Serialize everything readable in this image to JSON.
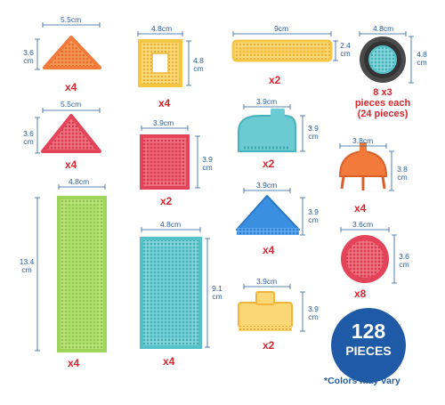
{
  "colors": {
    "dimension_line": "#2a5f9e",
    "quantity_text": "#d8262e",
    "badge": "#1f5aa6",
    "orange": "#f27a3a",
    "red": "#e4445a",
    "yellow": "#f7c544",
    "green": "#9fd45a",
    "teal": "#55c1c9",
    "blue": "#3a8fe0",
    "gray_rim": "#4a4a4a"
  },
  "pieces": [
    {
      "name": "orange-triangle-piece",
      "width": "5.5cm",
      "height_l1": "3.6",
      "height_l2": "cm",
      "qty": "x4"
    },
    {
      "name": "red-triangle-piece",
      "width": "5.5cm",
      "height_l1": "3.6",
      "height_l2": "cm",
      "qty": "x4"
    },
    {
      "name": "green-long-rectangle-piece",
      "width": "4.8cm",
      "height_l1": "13.4",
      "height_l2": "cm",
      "qty": "x4"
    },
    {
      "name": "yellow-square-frame-piece",
      "width": "4.8cm",
      "height_l1": "4.8",
      "height_l2": "cm",
      "qty": "x4"
    },
    {
      "name": "red-square-piece",
      "width": "3.9cm",
      "height_l1": "3.9",
      "height_l2": "cm",
      "qty": "x2"
    },
    {
      "name": "teal-tall-rectangle-piece",
      "width": "4.8cm",
      "height_l1": "9.1",
      "height_l2": "cm",
      "qty": "x4"
    },
    {
      "name": "yellow-long-bar-piece",
      "width": "9cm",
      "height_l1": "2.4",
      "height_l2": "cm",
      "qty": "x2"
    },
    {
      "name": "teal-arch-piece",
      "width": "3.9cm",
      "height_l1": "3.9",
      "height_l2": "cm",
      "qty": "x2"
    },
    {
      "name": "blue-roof-piece",
      "width": "3.9cm",
      "height_l1": "3.9",
      "height_l2": "cm",
      "qty": "x4"
    },
    {
      "name": "yellow-connector-piece",
      "width": "3.9cm",
      "height_l1": "3.9",
      "height_l2": "cm",
      "qty": "x2"
    },
    {
      "name": "wheel-piece",
      "width": "4.8cm",
      "height_l1": "4.8",
      "height_l2": "cm",
      "qty": ""
    },
    {
      "name": "orange-dome-piece",
      "width": "3.8cm",
      "height_l1": "3.8",
      "height_l2": "cm",
      "qty": "x4"
    },
    {
      "name": "red-round-piece",
      "width": "3.6cm",
      "height_l1": "3.6",
      "height_l2": "cm",
      "qty": "x8"
    }
  ],
  "wheel_note": {
    "line1": "8 x3",
    "line2": "pieces each",
    "line3": "(24 pieces)"
  },
  "badge": {
    "number": "128",
    "label": "PIECES"
  },
  "footnote": "*Colors may vary"
}
